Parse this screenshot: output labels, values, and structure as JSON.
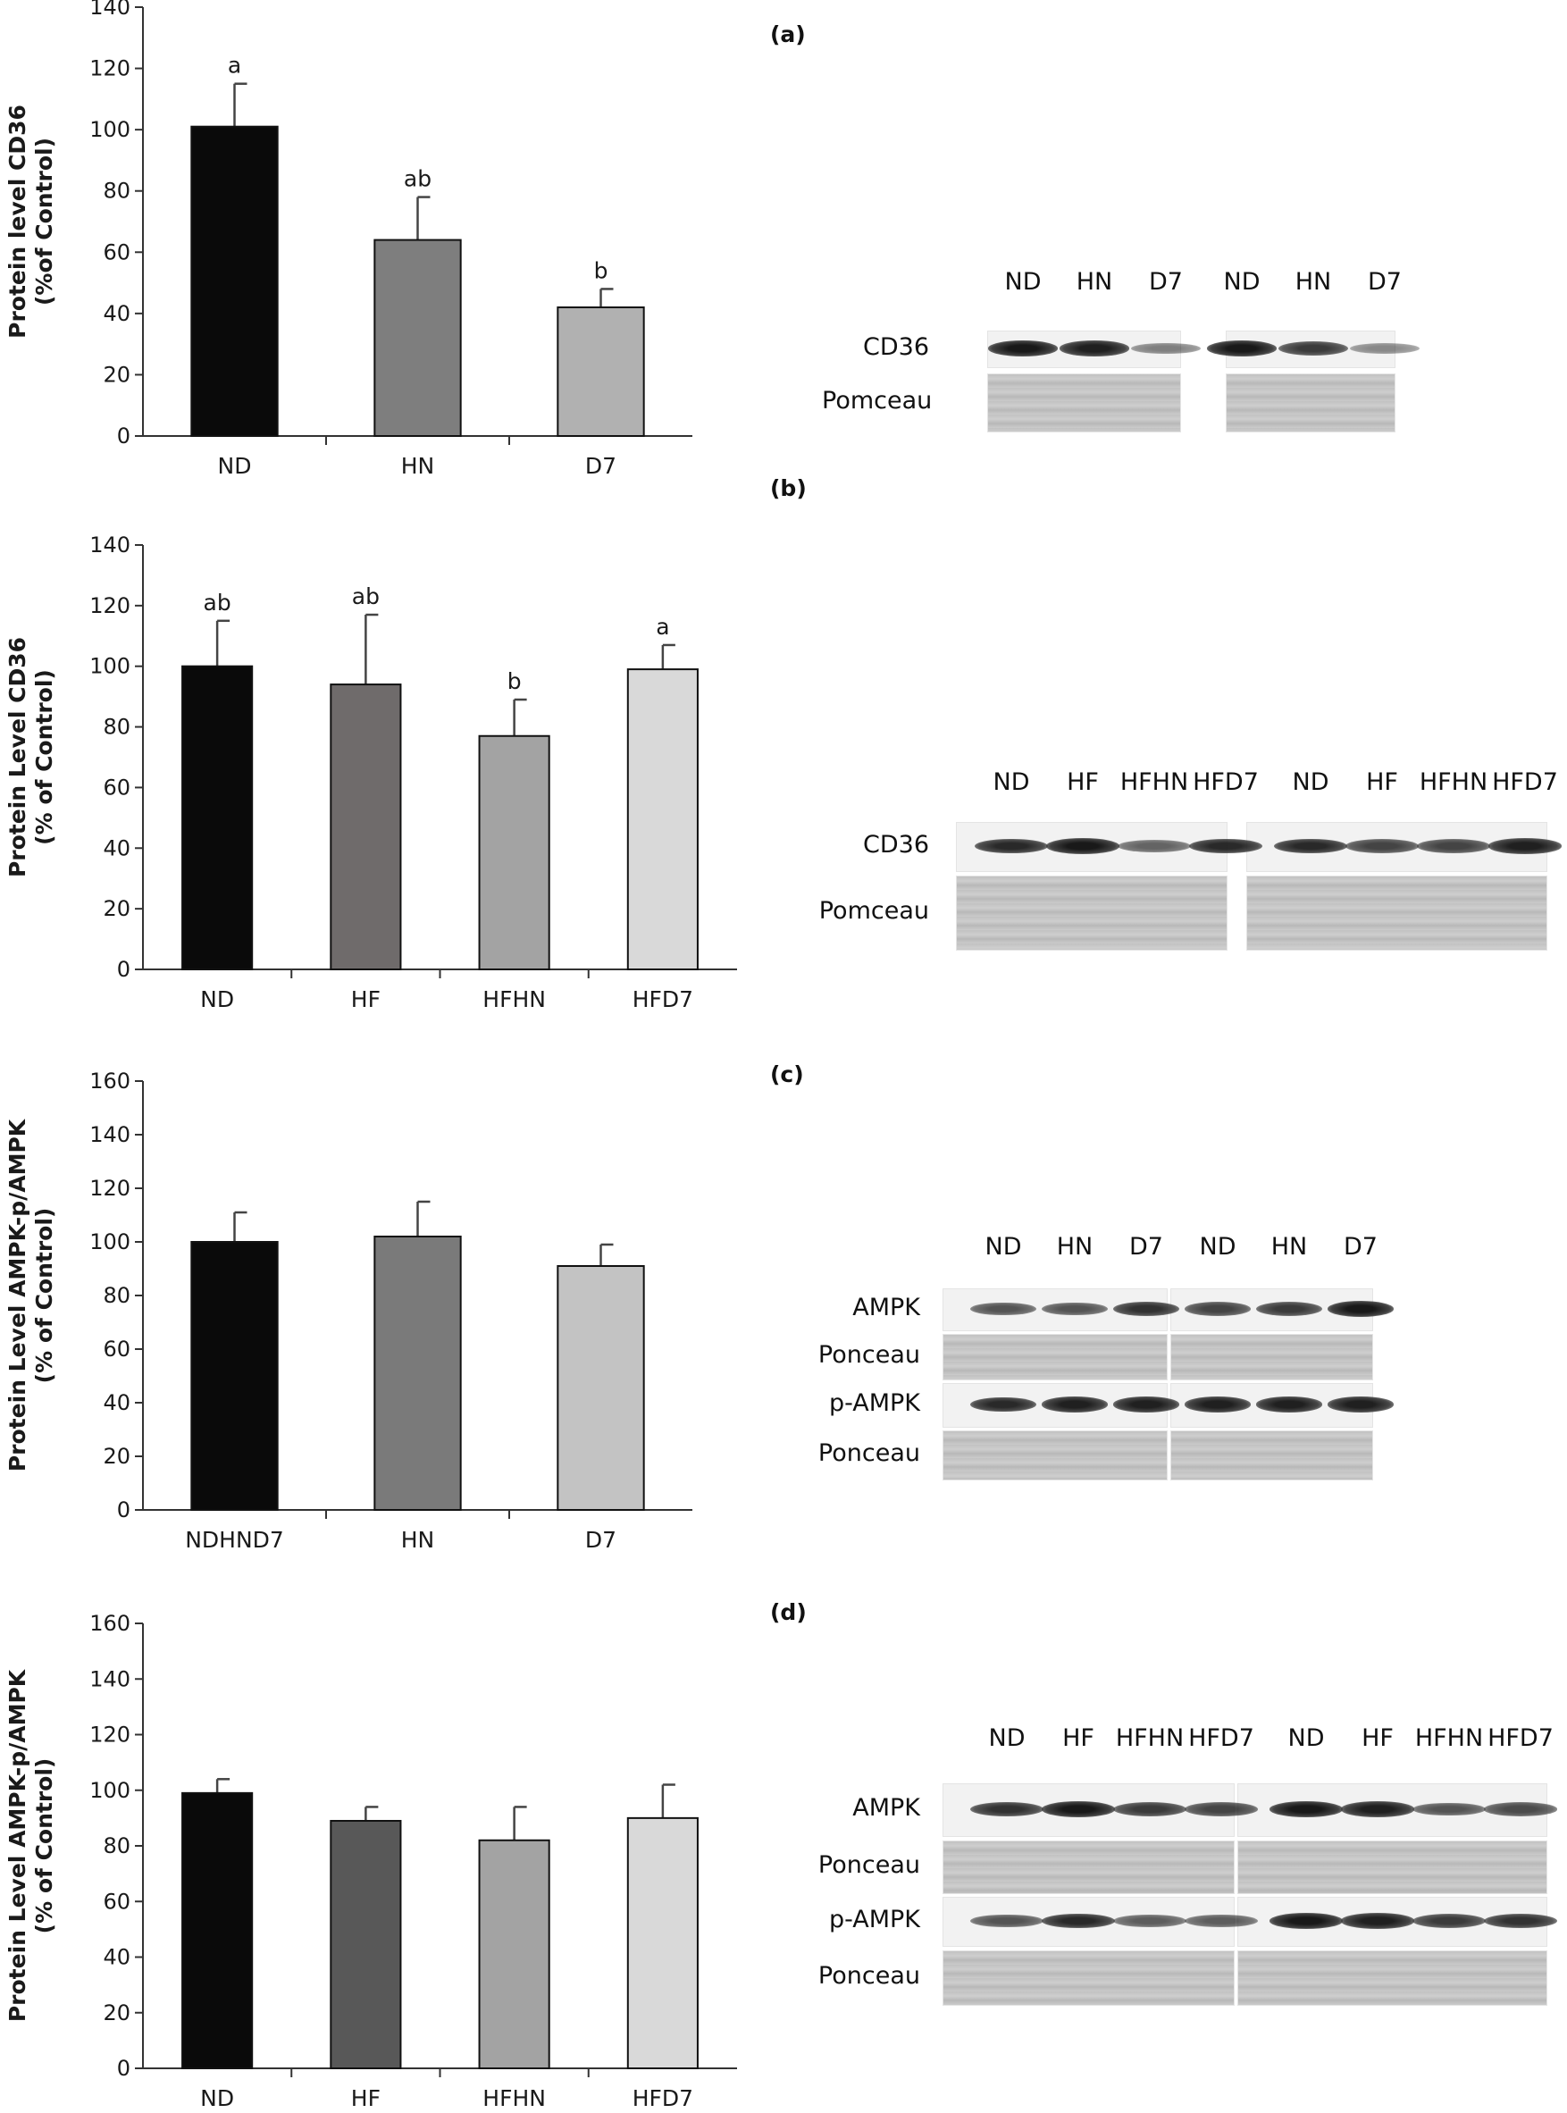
{
  "panels": [
    {
      "label": "(a)"
    },
    {
      "label": "(b)"
    },
    {
      "label": "(c)"
    },
    {
      "label": "(d)"
    }
  ],
  "chart_data": [
    {
      "type": "bar",
      "panel": "(a)",
      "title": "",
      "ylabel_line1": "Protein level CD36",
      "ylabel_line2": "(%of Control)",
      "categories": [
        "ND",
        "HN",
        "D7"
      ],
      "values": [
        101,
        64,
        42
      ],
      "errors": [
        14,
        14,
        6
      ],
      "significance": [
        "a",
        "ab",
        "b"
      ],
      "colors": [
        "#0a0a0a",
        "#7e7e7e",
        "#b1b1b1"
      ],
      "ylim": [
        0,
        140
      ],
      "yticks": [
        "0",
        "20",
        "40",
        "60",
        "80",
        "100",
        "120",
        "140"
      ]
    },
    {
      "type": "bar",
      "panel": "(b)",
      "title": "",
      "ylabel_line1": "Protein Level CD36",
      "ylabel_line2": "(% of Control)",
      "categories": [
        "ND",
        "HF",
        "HFHN",
        "HFD7"
      ],
      "values": [
        100,
        94,
        77,
        99
      ],
      "errors": [
        15,
        23,
        12,
        8
      ],
      "significance": [
        "ab",
        "ab",
        "b",
        "a"
      ],
      "colors": [
        "#0a0a0a",
        "#6f6b6b",
        "#a3a3a3",
        "#d9d9d9"
      ],
      "ylim": [
        0,
        140
      ],
      "yticks": [
        "0",
        "20",
        "40",
        "60",
        "80",
        "100",
        "120",
        "140"
      ]
    },
    {
      "type": "bar",
      "panel": "(c)",
      "title": "",
      "ylabel_line1": "Protein Level AMPK-p/AMPK",
      "ylabel_line2": "(% of Control)",
      "categories": [
        "NDHND7",
        "HN",
        "D7"
      ],
      "values": [
        100,
        102,
        91
      ],
      "errors": [
        11,
        13,
        8
      ],
      "significance": [
        "",
        "",
        ""
      ],
      "colors": [
        "#0a0a0a",
        "#7a7a7a",
        "#c3c3c3"
      ],
      "ylim": [
        0,
        160
      ],
      "yticks": [
        "0",
        "20",
        "40",
        "60",
        "80",
        "100",
        "120",
        "140",
        "160"
      ]
    },
    {
      "type": "bar",
      "panel": "(d)",
      "title": "",
      "ylabel_line1": "Protein Level AMPK-p/AMPK",
      "ylabel_line2": "(% of Control)",
      "categories": [
        "ND",
        "HF",
        "HFHN",
        "HFD7"
      ],
      "values": [
        99,
        89,
        82,
        90
      ],
      "errors": [
        5,
        5,
        12,
        12
      ],
      "significance": [
        "",
        "",
        "",
        ""
      ],
      "colors": [
        "#0a0a0a",
        "#585858",
        "#a3a3a3",
        "#d9d9d9"
      ],
      "ylim": [
        0,
        160
      ],
      "yticks": [
        "0",
        "20",
        "40",
        "60",
        "80",
        "100",
        "120",
        "140",
        "160"
      ]
    }
  ],
  "blots": [
    {
      "panel": "(a)",
      "lanes": [
        "ND",
        "HN",
        "D7",
        "ND",
        "HN",
        "D7"
      ],
      "rows": [
        "CD36",
        "Pomceau"
      ],
      "band_intensity": [
        0.95,
        0.9,
        0.35,
        0.95,
        0.75,
        0.3
      ]
    },
    {
      "panel": "(b)",
      "lanes": [
        "ND",
        "HF",
        "HFHN",
        "HFD7",
        "ND",
        "HF",
        "HFHN",
        "HFD7"
      ],
      "rows": [
        "CD36",
        "Pomceau"
      ],
      "band_intensity": [
        0.85,
        0.95,
        0.5,
        0.85,
        0.85,
        0.7,
        0.7,
        0.9
      ]
    },
    {
      "panel": "(c)",
      "lanes": [
        "ND",
        "HN",
        "D7",
        "ND",
        "HN",
        "D7"
      ],
      "rows": [
        "AMPK",
        "Ponceau",
        "p-AMPK",
        "Ponceau"
      ],
      "band_intensity_ampk": [
        0.6,
        0.6,
        0.8,
        0.7,
        0.75,
        0.95
      ],
      "band_intensity_pampk": [
        0.85,
        0.9,
        0.9,
        0.9,
        0.9,
        0.9
      ]
    },
    {
      "panel": "(d)",
      "lanes": [
        "ND",
        "HF",
        "HFHN",
        "HFD7",
        "ND",
        "HF",
        "HFHN",
        "HFD7"
      ],
      "rows": [
        "AMPK",
        "Ponceau",
        "p-AMPK",
        "Ponceau"
      ],
      "band_intensity_ampk": [
        0.8,
        0.95,
        0.75,
        0.7,
        0.95,
        0.9,
        0.6,
        0.65
      ],
      "band_intensity_pampk": [
        0.6,
        0.85,
        0.55,
        0.55,
        0.95,
        0.9,
        0.75,
        0.8
      ]
    }
  ]
}
